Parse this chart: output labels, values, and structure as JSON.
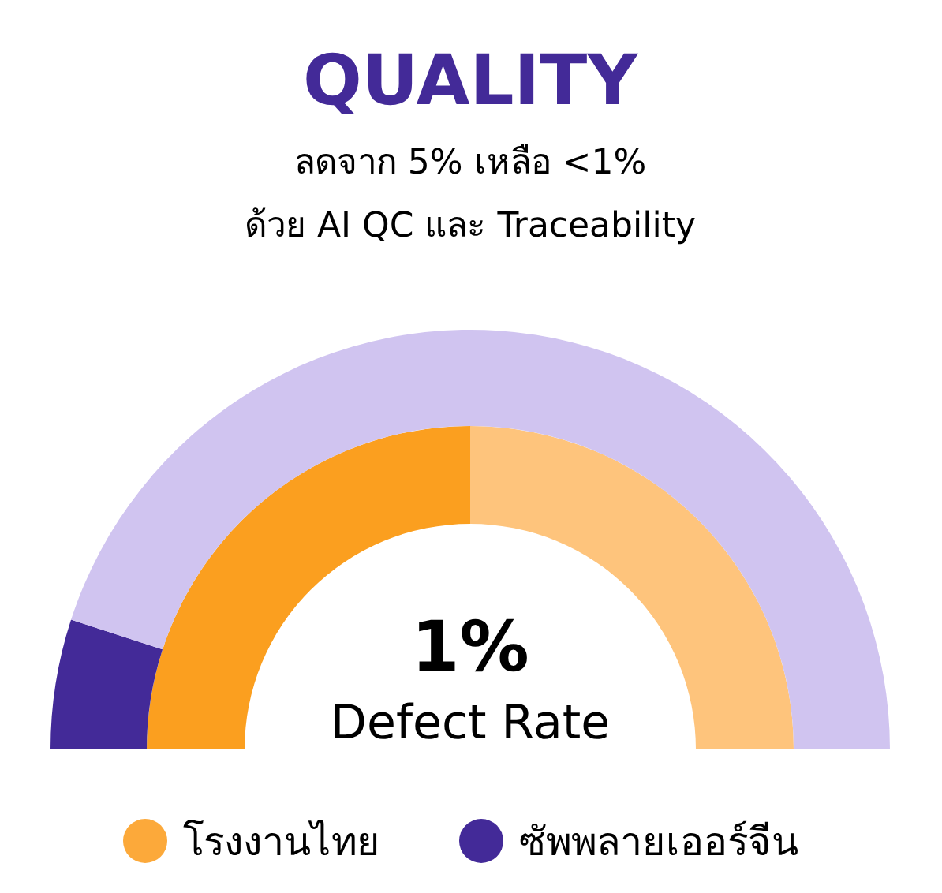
{
  "chart_data": {
    "type": "donut",
    "title": "QUALITY",
    "subtitle": "ลดจาก 5% เหลือ <1%\nด้วย AI QC และ Traceability",
    "annotations": [
      "1%",
      "Defect Rate"
    ],
    "legend": "bottom",
    "series": [
      {
        "name": "โรงงานไทย",
        "color": "#fca93a",
        "values": [
          50,
          50
        ],
        "colors": [
          "#fb9f1f",
          "#fec47c"
        ]
      },
      {
        "name": "ซัพพลายเออร์จีน",
        "color": "#432a98",
        "values": [
          10,
          90
        ],
        "colors": [
          "#432a98",
          "#d0c4f0"
        ]
      }
    ]
  }
}
